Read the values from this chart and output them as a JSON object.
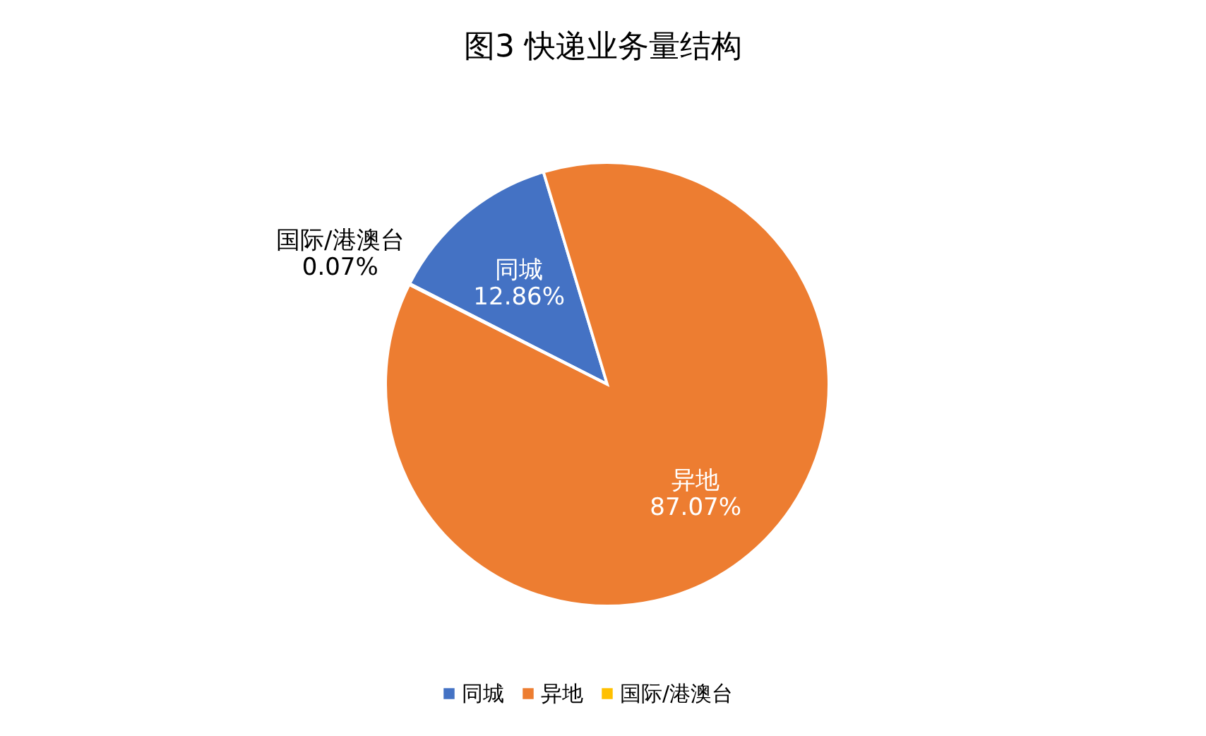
{
  "chart_data": {
    "type": "pie",
    "title": "图3   快递业务量结构",
    "categories": [
      "同城",
      "异地",
      "国际/港澳台"
    ],
    "values": [
      12.86,
      87.07,
      0.07
    ],
    "colors": [
      "#4472c4",
      "#ed7d31",
      "#ffc000"
    ],
    "value_labels": [
      "12.86%",
      "87.07%",
      "0.07%"
    ],
    "legend": "bottom"
  }
}
